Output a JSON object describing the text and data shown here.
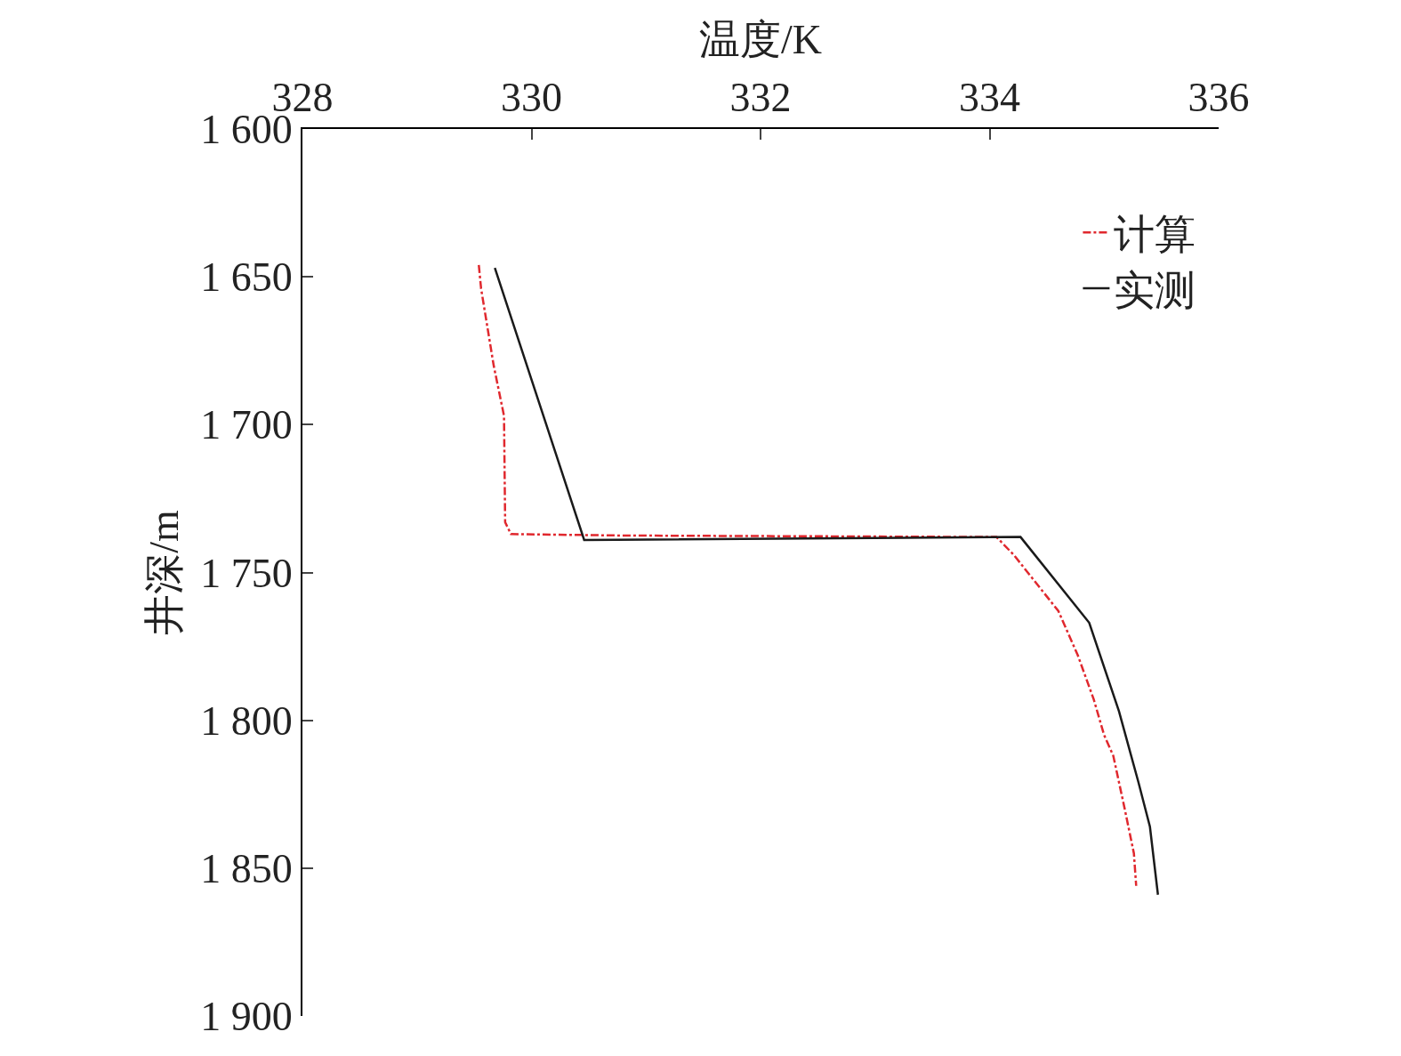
{
  "chart_data": {
    "type": "line",
    "xlabel": "温度/K",
    "ylabel": "井深/m",
    "xlim": [
      328,
      336
    ],
    "xticks": [
      328,
      330,
      332,
      334,
      336
    ],
    "ylim": [
      1900,
      1600
    ],
    "yticks": [
      {
        "value": 1600,
        "label": "1 600"
      },
      {
        "value": 1650,
        "label": "1 650"
      },
      {
        "value": 1700,
        "label": "1 700"
      },
      {
        "value": 1750,
        "label": "1 750"
      },
      {
        "value": 1800,
        "label": "1 800"
      },
      {
        "value": 1850,
        "label": "1 850"
      },
      {
        "value": 1900,
        "label": "1 900"
      }
    ],
    "grid": false,
    "legend": "top right",
    "marker": "none",
    "series": [
      {
        "name": "计算",
        "color": "#e0282e",
        "line_style": "dashdot",
        "x": [
          329.54,
          329.56,
          329.67,
          329.76,
          329.77,
          329.82,
          330.79,
          334.06,
          334.21,
          334.6,
          334.77,
          334.91,
          335.0,
          335.08,
          335.18,
          335.26,
          335.28
        ],
        "values": [
          1646,
          1654,
          1680,
          1697,
          1733,
          1737,
          1737.5,
          1738,
          1744,
          1763,
          1778,
          1793,
          1805,
          1812,
          1830,
          1845,
          1856
        ]
      },
      {
        "name": "实测",
        "color": "#1a1a1a",
        "line_style": "solid",
        "x": [
          329.68,
          330.46,
          334.27,
          334.87,
          335.13,
          335.3,
          335.4,
          335.47
        ],
        "values": [
          1647,
          1739,
          1738,
          1767,
          1797,
          1821,
          1836,
          1859
        ]
      }
    ]
  }
}
